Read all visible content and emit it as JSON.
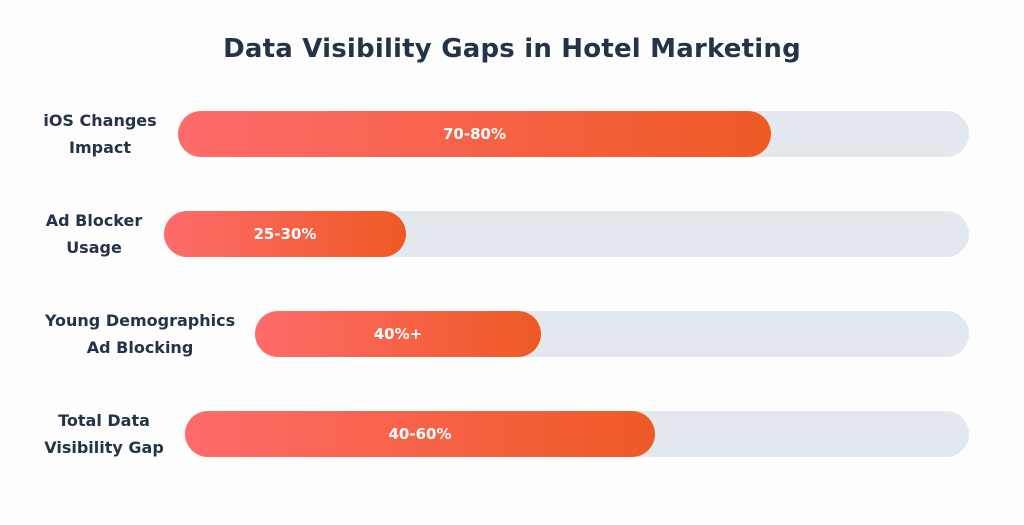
{
  "chart_data": {
    "type": "bar",
    "orientation": "horizontal",
    "title": "Data Visibility Gaps in Hotel Marketing",
    "categories": [
      "iOS Changes Impact",
      "Ad Blocker Usage",
      "Young Demographics Ad Blocking",
      "Total Data Visibility Gap"
    ],
    "category_lines": [
      [
        "iOS Changes",
        "Impact"
      ],
      [
        "Ad Blocker",
        "Usage"
      ],
      [
        "Young Demographics",
        "Ad Blocking"
      ],
      [
        "Total Data",
        "Visibility Gap"
      ]
    ],
    "value_labels": [
      "70-80%",
      "25-30%",
      "40%+",
      "40-60%"
    ],
    "values": [
      75,
      30,
      40,
      60
    ],
    "xlim": [
      0,
      100
    ],
    "colors": {
      "fill_start": "#ff6b6b",
      "fill_end": "#ee5a24",
      "track": "#e3e8ef"
    }
  }
}
